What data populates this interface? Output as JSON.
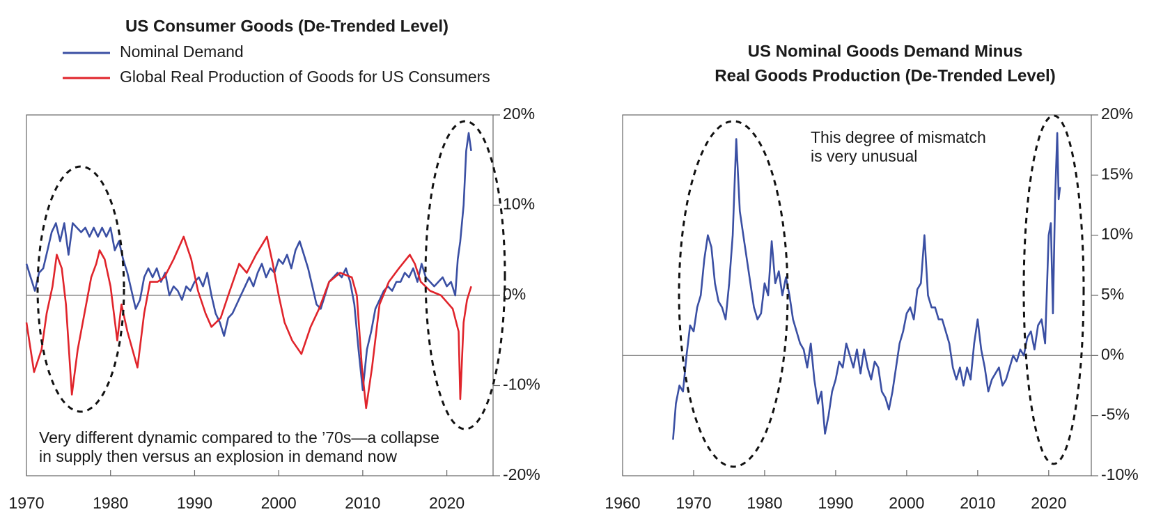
{
  "chart_data": [
    {
      "type": "line",
      "title": "US Consumer Goods (De-Trended Level)",
      "annotation": [
        "Very different dynamic compared to the ’70s—a collapse",
        "in supply then versus an explosion in demand now"
      ],
      "xlim": [
        1970,
        2025.5
      ],
      "xticks": [
        1970,
        1980,
        1990,
        2000,
        2010,
        2020
      ],
      "ylim": [
        -20,
        20
      ],
      "yticks": [
        {
          "value": -20,
          "label": "-20%"
        },
        {
          "value": -10,
          "label": "-10%"
        },
        {
          "value": 0,
          "label": "0%"
        },
        {
          "value": 10,
          "label": "10%"
        },
        {
          "value": 20,
          "label": "20%"
        }
      ],
      "series": [
        {
          "name": "Nominal Demand",
          "color": "#3a4fa3",
          "x": [
            1970,
            1970.5,
            1971,
            1971.5,
            1972,
            1972.5,
            1973,
            1973.5,
            1974,
            1974.5,
            1975,
            1975.5,
            1976,
            1976.5,
            1977,
            1977.5,
            1978,
            1978.5,
            1979,
            1979.5,
            1980,
            1980.5,
            1981,
            1981.5,
            1982,
            1982.5,
            1983,
            1983.5,
            1984,
            1984.5,
            1985,
            1985.5,
            1986,
            1986.5,
            1987,
            1987.5,
            1988,
            1988.5,
            1989,
            1989.5,
            1990,
            1990.5,
            1991,
            1991.5,
            1992,
            1992.5,
            1993,
            1993.5,
            1994,
            1994.5,
            1995,
            1995.5,
            1996,
            1996.5,
            1997,
            1997.5,
            1998,
            1998.5,
            1999,
            1999.5,
            2000,
            2000.5,
            2001,
            2001.5,
            2002,
            2002.5,
            2003,
            2003.5,
            2004,
            2004.5,
            2005,
            2005.5,
            2006,
            2006.5,
            2007,
            2007.5,
            2008,
            2008.5,
            2009,
            2009.5,
            2010,
            2010.5,
            2011,
            2011.5,
            2012,
            2012.5,
            2013,
            2013.5,
            2014,
            2014.5,
            2015,
            2015.5,
            2016,
            2016.5,
            2017,
            2017.5,
            2018,
            2018.5,
            2019,
            2019.5,
            2020,
            2020.5,
            2021,
            2021.3,
            2021.6,
            2022,
            2022.3,
            2022.6,
            2022.9
          ],
          "values": [
            3.5,
            2,
            0.5,
            2.5,
            3,
            5,
            7,
            8,
            6,
            8,
            4.5,
            8,
            7.5,
            7,
            7.5,
            6.5,
            7.5,
            6.5,
            7.5,
            6.5,
            7.5,
            5,
            6,
            4,
            2.5,
            0.5,
            -1.5,
            -0.5,
            2,
            3,
            2,
            3,
            1.5,
            2.5,
            0,
            1,
            0.5,
            -0.5,
            1,
            0.5,
            1.5,
            2,
            1,
            2.5,
            0,
            -2,
            -3,
            -4.5,
            -2.5,
            -2,
            -1,
            0,
            1,
            2,
            1,
            2.5,
            3.5,
            2,
            3,
            2.5,
            4,
            3.5,
            4.5,
            3,
            5,
            6,
            4.5,
            3,
            1,
            -1,
            -1.5,
            0,
            1.5,
            2,
            2.5,
            2,
            3,
            1.5,
            -1,
            -6,
            -10.5,
            -6,
            -4,
            -1.5,
            -0.5,
            0.5,
            1,
            0.5,
            1.5,
            1.5,
            2.5,
            2,
            3,
            1.5,
            3.5,
            2,
            1.5,
            1,
            1.5,
            2,
            1,
            1.5,
            0,
            4,
            6,
            10,
            16,
            18,
            16
          ]
        },
        {
          "name": "Global Real Production of Goods for US Consumers",
          "color": "#e0242b",
          "x": [
            1970,
            1970.9,
            1971.8,
            1972.4,
            1973.1,
            1973.6,
            1974.2,
            1974.7,
            1975.4,
            1976.1,
            1977.1,
            1977.7,
            1978.3,
            1978.7,
            1979.3,
            1980,
            1980.8,
            1981.3,
            1982,
            1983.2,
            1984,
            1984.7,
            1985.6,
            1986.4,
            1987.5,
            1988.7,
            1989.6,
            1990.4,
            1991.3,
            1992,
            1993.1,
            1994,
            1995.3,
            1996.2,
            1997.3,
            1998.6,
            1999.3,
            2000,
            2000.7,
            2001.6,
            2002.7,
            2003.8,
            2004.8,
            2006,
            2007.3,
            2008.7,
            2009.3,
            2009.9,
            2010.4,
            2011.1,
            2012,
            2013.1,
            2014.3,
            2015.6,
            2016.2,
            2016.9,
            2018,
            2019.3,
            2020.7,
            2021.4,
            2021.6,
            2022,
            2022.4,
            2022.9
          ],
          "values": [
            -3,
            -8.5,
            -6,
            -2,
            1,
            4.5,
            3,
            -1,
            -11,
            -6,
            -1,
            2,
            3.5,
            5,
            4,
            1,
            -5,
            -1,
            -4,
            -8,
            -2,
            1.5,
            1.5,
            2,
            4,
            6.5,
            4,
            0.5,
            -2,
            -3.5,
            -2.5,
            0,
            3.5,
            2.5,
            4.5,
            6.5,
            3.5,
            0,
            -3,
            -5,
            -6.5,
            -3.5,
            -1.5,
            1.5,
            2.5,
            2,
            0,
            -8,
            -12.5,
            -8,
            -1,
            1.5,
            3,
            4.5,
            3.5,
            1.5,
            0.5,
            0,
            -1.5,
            -4,
            -11.5,
            -3,
            -0.5,
            1
          ]
        }
      ]
    },
    {
      "type": "line",
      "title": [
        "US Nominal Goods Demand Minus",
        "Real Goods Production (De-Trended Level)"
      ],
      "annotation": [
        "This degree of mismatch",
        "is very unusual"
      ],
      "xlim": [
        1960,
        2026
      ],
      "xticks": [
        1960,
        1970,
        1980,
        1990,
        2000,
        2010,
        2020
      ],
      "ylim": [
        -10,
        20
      ],
      "yticks": [
        {
          "value": -10,
          "label": "-10%"
        },
        {
          "value": -5,
          "label": "-5%"
        },
        {
          "value": 0,
          "label": "0%"
        },
        {
          "value": 5,
          "label": "5%"
        },
        {
          "value": 10,
          "label": "10%"
        },
        {
          "value": 15,
          "label": "15%"
        },
        {
          "value": 20,
          "label": "20%"
        }
      ],
      "series": [
        {
          "color": "#3a4fa3",
          "x": [
            1967.1,
            1967.5,
            1968,
            1968.5,
            1969,
            1969.5,
            1970,
            1970.5,
            1971,
            1971.5,
            1972,
            1972.5,
            1973,
            1973.5,
            1974,
            1974.5,
            1975,
            1975.5,
            1976,
            1976.5,
            1977,
            1977.5,
            1978,
            1978.5,
            1979,
            1979.5,
            1980,
            1980.5,
            1981,
            1981.5,
            1982,
            1982.5,
            1983,
            1983.5,
            1984,
            1984.5,
            1985,
            1985.5,
            1986,
            1986.5,
            1987,
            1987.5,
            1988,
            1988.5,
            1989,
            1989.5,
            1990,
            1990.5,
            1991,
            1991.5,
            1992,
            1992.5,
            1993,
            1993.5,
            1994,
            1994.5,
            1995,
            1995.5,
            1996,
            1996.5,
            1997,
            1997.5,
            1998,
            1998.5,
            1999,
            1999.5,
            2000,
            2000.5,
            2001,
            2001.5,
            2002,
            2002.5,
            2003,
            2003.5,
            2004,
            2004.5,
            2005,
            2005.5,
            2006,
            2006.5,
            2007,
            2007.5,
            2008,
            2008.5,
            2009,
            2009.5,
            2010,
            2010.5,
            2011,
            2011.5,
            2012,
            2012.5,
            2013,
            2013.5,
            2014,
            2014.5,
            2015,
            2015.5,
            2016,
            2016.5,
            2017,
            2017.5,
            2018,
            2018.5,
            2019,
            2019.5,
            2020,
            2020.3,
            2020.6,
            2020.9,
            2021.2,
            2021.4,
            2021.6
          ],
          "values": [
            -7,
            -4,
            -2.5,
            -3,
            0,
            2.5,
            2,
            4,
            5,
            8,
            10,
            9,
            6,
            4.5,
            4,
            3,
            6,
            10,
            18,
            12,
            10,
            8,
            6,
            4,
            3,
            3.5,
            6,
            5,
            9.5,
            6,
            7,
            5,
            6.5,
            5,
            3,
            2,
            1,
            0.5,
            -1,
            1,
            -2,
            -4,
            -3,
            -6.5,
            -5,
            -3,
            -2,
            -0.5,
            -1,
            1,
            0,
            -1,
            0.5,
            -1.5,
            0.5,
            -1,
            -2,
            -0.5,
            -1,
            -3,
            -3.5,
            -4.5,
            -3,
            -1,
            1,
            2,
            3.5,
            4,
            3,
            5.5,
            6,
            10,
            5,
            4,
            4,
            3,
            3,
            2,
            1,
            -1,
            -2,
            -1,
            -2.5,
            -1,
            -2,
            1,
            3,
            0.5,
            -1,
            -3,
            -2,
            -1.5,
            -1,
            -2.5,
            -2,
            -1,
            0,
            -0.5,
            0.5,
            0,
            1.5,
            2,
            0.5,
            2.5,
            3,
            1,
            10,
            11,
            3.5,
            13,
            18.5,
            13,
            14
          ]
        }
      ]
    }
  ]
}
